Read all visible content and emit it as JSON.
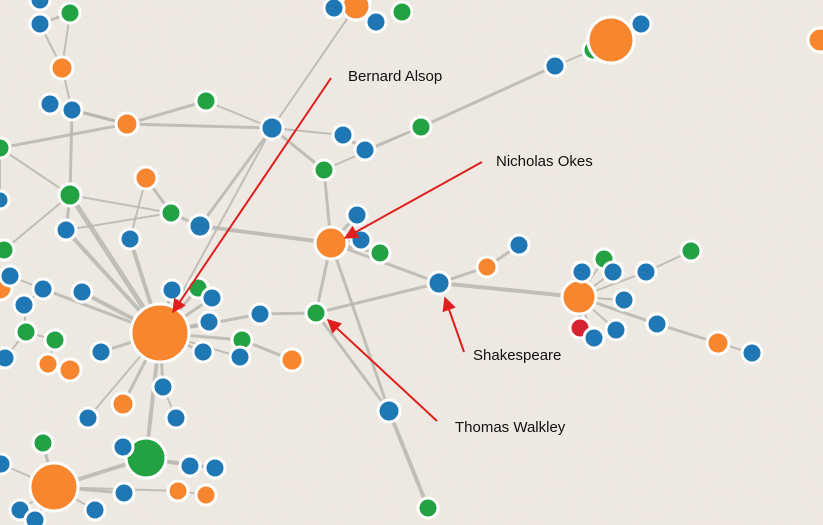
{
  "colors": {
    "background": "#efebe4",
    "edge": "#b9b6b0",
    "blue": "#1f77b4",
    "orange": "#f7862f",
    "green": "#22a243",
    "red": "#d62433",
    "arrow": "#e01e1e"
  },
  "callouts": [
    {
      "id": "bernard-alsop",
      "label": "Bernard Alsop"
    },
    {
      "id": "nicholas-okes",
      "label": "Nicholas Okes"
    },
    {
      "id": "shakespeare",
      "label": "Shakespeare"
    },
    {
      "id": "thomas-walkley",
      "label": "Thomas Walkley"
    }
  ]
}
